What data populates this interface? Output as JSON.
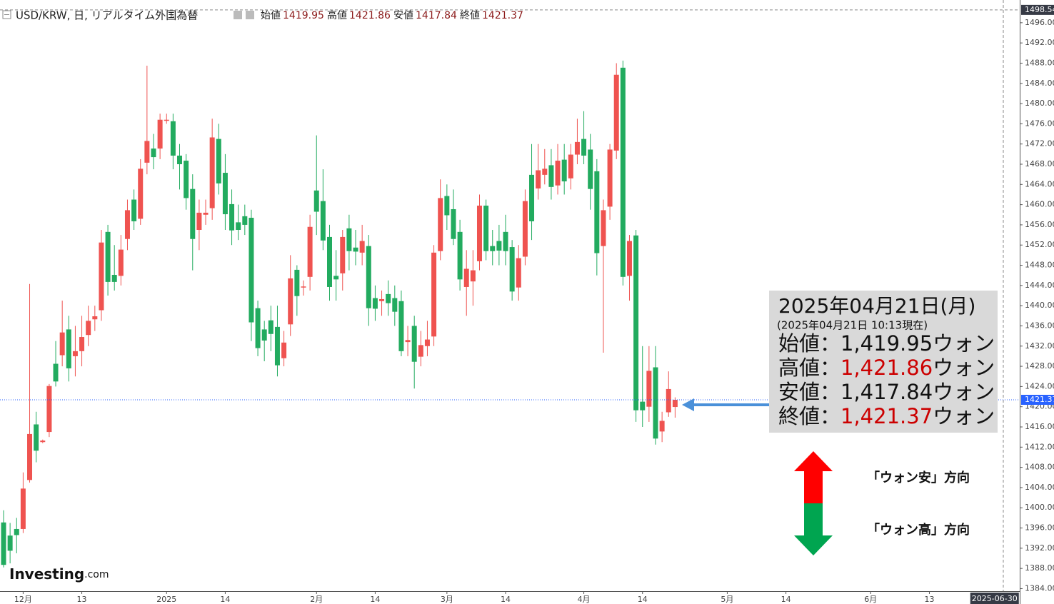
{
  "chart_data": {
    "type": "candlestick",
    "header": {
      "symbol": "USD/KRW, 日, リアルタイム外国為替",
      "ohlc_labels": [
        "始値",
        "高値",
        "安値",
        "終値"
      ]
    },
    "up_color": "#ef5350",
    "down_color": "#22ab5f",
    "last_price_color": "#2962ff",
    "ylim": [
      1383.5,
      1500.5
    ],
    "yticks": [
      {
        "value": 1384,
        "label": "1384.00"
      },
      {
        "value": 1388,
        "label": "1388.00"
      },
      {
        "value": 1392,
        "label": "1392.00"
      },
      {
        "value": 1396,
        "label": "1396.00"
      },
      {
        "value": 1400,
        "label": "1400.00"
      },
      {
        "value": 1404,
        "label": "1404.00"
      },
      {
        "value": 1408,
        "label": "1408.00"
      },
      {
        "value": 1412,
        "label": "1412.00"
      },
      {
        "value": 1416,
        "label": "1416.00"
      },
      {
        "value": 1420,
        "label": "1420.00"
      },
      {
        "value": 1424,
        "label": "1424.00"
      },
      {
        "value": 1428,
        "label": "1428.00"
      },
      {
        "value": 1432,
        "label": "1432.00"
      },
      {
        "value": 1436,
        "label": "1436.00"
      },
      {
        "value": 1440,
        "label": "1440.00"
      },
      {
        "value": 1444,
        "label": "1444.00"
      },
      {
        "value": 1448,
        "label": "1448.00"
      },
      {
        "value": 1452,
        "label": "1452.00"
      },
      {
        "value": 1456,
        "label": "1456.00"
      },
      {
        "value": 1460,
        "label": "1460.00"
      },
      {
        "value": 1464,
        "label": "1464.00"
      },
      {
        "value": 1468,
        "label": "1468.00"
      },
      {
        "value": 1472,
        "label": "1472.00"
      },
      {
        "value": 1476,
        "label": "1476.00"
      },
      {
        "value": 1480,
        "label": "1480.00"
      },
      {
        "value": 1484,
        "label": "1484.00"
      },
      {
        "value": 1488,
        "label": "1488.00"
      },
      {
        "value": 1492,
        "label": "1492.00"
      },
      {
        "value": 1496,
        "label": "1496.00"
      }
    ],
    "crosshair_price": 1498.54,
    "categories": [
      null,
      null,
      null,
      "12月",
      null,
      null,
      null,
      null,
      null,
      null,
      null,
      null,
      "13",
      null,
      null,
      null,
      null,
      null,
      null,
      null,
      null,
      null,
      null,
      null,
      null,
      "2025",
      null,
      null,
      null,
      null,
      null,
      null,
      null,
      null,
      "14",
      null,
      null,
      null,
      null,
      null,
      null,
      null,
      null,
      null,
      null,
      null,
      null,
      null,
      "2月",
      null,
      null,
      null,
      null,
      null,
      null,
      null,
      null,
      "14",
      null,
      null,
      null,
      null,
      null,
      null,
      null,
      null,
      null,
      null,
      "3月",
      null,
      null,
      null,
      null,
      null,
      null,
      null,
      null,
      "14",
      null,
      null,
      null,
      null,
      null,
      null,
      null,
      null,
      null,
      null,
      null,
      "4月",
      null,
      null,
      null,
      null,
      null,
      null,
      null,
      null,
      "14",
      null,
      null,
      null,
      null,
      null,
      null,
      null,
      null,
      null,
      null,
      null,
      null,
      "5月",
      null,
      null,
      null,
      null,
      null,
      null,
      null,
      null,
      "14",
      null,
      null,
      null,
      null,
      null,
      null,
      null,
      null,
      null,
      null,
      null,
      null,
      "6月",
      null,
      null,
      null,
      null,
      null,
      null,
      null,
      null,
      "13",
      null,
      null,
      null,
      null,
      null,
      null,
      null,
      null,
      null,
      "2025-06-30"
    ],
    "open": [
      1397.1,
      1394.5,
      1395.8,
      1395.8,
      1405.5,
      1416.5,
      1413,
      1415,
      1428.5,
      1430.2,
      1435.3,
      1430,
      1431,
      1434.2,
      1437.3,
      1439.1,
      1454.6,
      1446.1,
      1445.9,
      1453.2,
      1461,
      1457.2,
      1468.3,
      1471.1,
      1471.1,
      1476.6,
      1476.5,
      1469.7,
      1468.7,
      1463.1,
      1455,
      1458,
      1459.3,
      1473,
      1466.3,
      1460.1,
      1456.5,
      1457.7,
      1457.4,
      1439.5,
      1435.3,
      1437.1,
      1435.8,
      1429.6,
      1436.3,
      1447.1,
      1443.6,
      1445.7,
      1462.8,
      1460.7,
      1453.6,
      1445.9,
      1446.4,
      1455.3,
      1451.5,
      1450.5,
      1451.8,
      1441.5,
      1440.9,
      1442.3,
      1441.5,
      1440.9,
      1432.8,
      1436,
      1429.9,
      1432,
      1433.9,
      1450.8,
      1461.7,
      1459.1,
      1454.6,
      1443.7,
      1444.8,
      1448.8,
      1459.8,
      1451.8,
      1452.8,
      1454.6,
      1451.6,
      1443.6,
      1449.7,
      1465.9,
      1463.2,
      1465.9,
      1467.8,
      1463.8,
      1468.9,
      1465.2,
      1469.9,
      1473,
      1470.9,
      1466.6,
      1451.8,
      1459.6,
      1470.7,
      1487.1,
      1445.9,
      1453.9,
      1421,
      1420,
      1427.8,
      1415.1,
      1418.9,
      1419.95,
      null,
      null,
      null,
      null,
      null,
      null,
      null,
      null,
      null,
      null,
      null,
      null,
      null,
      null,
      null,
      null,
      null,
      null,
      null,
      null,
      null,
      null,
      null,
      null,
      null,
      null,
      null,
      null,
      null,
      null,
      null,
      null,
      null,
      null,
      null,
      null,
      null,
      null,
      null,
      null,
      null,
      null,
      null,
      null,
      null,
      null,
      null,
      null,
      null
    ],
    "high": [
      1399.5,
      1397,
      1398,
      1407,
      1444.3,
      1419,
      1413.5,
      1424.5,
      1433,
      1441,
      1438,
      1436,
      1438,
      1440,
      1440,
      1455,
      1456,
      1452,
      1454,
      1461,
      1463,
      1469,
      1487.5,
      1474,
      1478,
      1478,
      1478,
      1472,
      1470,
      1466,
      1461,
      1461,
      1477,
      1476,
      1470,
      1463,
      1460,
      1460,
      1459,
      1441,
      1437,
      1440,
      1440,
      1435,
      1450,
      1448,
      1445,
      1458,
      1473.7,
      1467,
      1456,
      1451,
      1455,
      1458,
      1455,
      1456,
      1454,
      1444,
      1443,
      1445,
      1444,
      1443,
      1436,
      1438,
      1435,
      1437,
      1452,
      1465,
      1464,
      1463,
      1457,
      1451,
      1451,
      1462,
      1461,
      1455,
      1456,
      1458,
      1453,
      1452,
      1463,
      1472,
      1472,
      1471,
      1471,
      1472,
      1472,
      1472,
      1477,
      1478.5,
      1474,
      1469,
      1461,
      1472,
      1488,
      1488.5,
      1454,
      1455,
      1432,
      1432,
      1432,
      1419,
      1427,
      1421.86,
      null,
      null,
      null,
      null,
      null,
      null,
      null,
      null,
      null,
      null,
      null,
      null,
      null,
      null,
      null,
      null,
      null,
      null,
      null,
      null,
      null,
      null,
      null,
      null,
      null,
      null,
      null,
      null,
      null,
      null,
      null,
      null,
      null,
      null,
      null,
      null,
      null,
      null,
      null,
      null,
      null,
      null,
      null,
      null,
      null,
      null,
      null,
      null,
      null
    ],
    "low": [
      1388.2,
      1389,
      1391,
      1395,
      1405,
      1409,
      1412.8,
      1414,
      1424,
      1428,
      1425,
      1426,
      1428,
      1432,
      1435,
      1437,
      1442,
      1443,
      1444,
      1451,
      1455,
      1456,
      1466,
      1467,
      1469,
      1476,
      1467,
      1463,
      1459,
      1447,
      1451,
      1456,
      1457,
      1462,
      1455,
      1452,
      1453,
      1454,
      1433,
      1430,
      1429,
      1431,
      1426,
      1428,
      1434,
      1438,
      1442,
      1443,
      1454,
      1451,
      1441,
      1441,
      1443,
      1447,
      1448,
      1448,
      1436,
      1437,
      1438,
      1438,
      1436,
      1430,
      1430,
      1423.6,
      1428,
      1430,
      1432,
      1449,
      1455,
      1452,
      1443,
      1438,
      1440,
      1447,
      1449,
      1448,
      1448,
      1448,
      1441,
      1441,
      1448,
      1453,
      1461,
      1464,
      1461,
      1462,
      1462,
      1463,
      1468,
      1468,
      1459,
      1446,
      1430.7,
      1457,
      1469,
      1444,
      1441,
      1417,
      1416,
      1417,
      1412.5,
      1413,
      1418,
      1417.84,
      null,
      null,
      null,
      null,
      null,
      null,
      null,
      null,
      null,
      null,
      null,
      null,
      null,
      null,
      null,
      null,
      null,
      null,
      null,
      null,
      null,
      null,
      null,
      null,
      null,
      null,
      null,
      null,
      null,
      null,
      null,
      null,
      null,
      null,
      null,
      null,
      null,
      null,
      null,
      null,
      null,
      null,
      null,
      null,
      null,
      null,
      null,
      null,
      null
    ],
    "close": [
      1388.7,
      1391.5,
      1394.6,
      1403.8,
      1414.6,
      1411.3,
      1413.3,
      1424.1,
      1425,
      1434.7,
      1427.6,
      1431,
      1433.8,
      1437,
      1437.9,
      1452.5,
      1444.7,
      1444.7,
      1451.1,
      1458.9,
      1456.7,
      1467.1,
      1472.6,
      1469.4,
      1476.8,
      1476.8,
      1469.7,
      1468,
      1461.3,
      1453.2,
      1458.4,
      1458.4,
      1473.3,
      1464.2,
      1458.1,
      1454.9,
      1455,
      1456,
      1436.7,
      1431.6,
      1433.1,
      1434.4,
      1428.2,
      1432.7,
      1445.4,
      1441.9,
      1443.8,
      1455.6,
      1458.6,
      1452.9,
      1443.7,
      1445.2,
      1453.6,
      1450.8,
      1450.7,
      1452.8,
      1439.5,
      1439.4,
      1441.3,
      1440.5,
      1438.8,
      1431,
      1433.2,
      1428.9,
      1432.2,
      1433.3,
      1450.5,
      1461.3,
      1457.9,
      1453.2,
      1445.2,
      1447.3,
      1447,
      1459.8,
      1450.8,
      1450.8,
      1450.9,
      1450.8,
      1442.8,
      1449.4,
      1460.7,
      1456.7,
      1466.8,
      1467.1,
      1463.5,
      1468.7,
      1464.6,
      1469.9,
      1472.4,
      1469.7,
      1463.1,
      1450.4,
      1458.9,
      1470.9,
      1485.7,
      1445.7,
      1452.8,
      1419.3,
      1419.3,
      1427.1,
      1413.7,
      1417.2,
      1423.5,
      1421.37,
      null,
      null,
      null,
      null,
      null,
      null,
      null,
      null,
      null,
      null,
      null,
      null,
      null,
      null,
      null,
      null,
      null,
      null,
      null,
      null,
      null,
      null,
      null,
      null,
      null,
      null,
      null,
      null,
      null,
      null,
      null,
      null,
      null,
      null,
      null,
      null,
      null,
      null,
      null,
      null,
      null,
      null,
      null,
      null,
      null,
      null,
      null,
      null,
      null
    ],
    "annotation": {
      "date": "2025年04月21日(月)",
      "timestamp": "(2025年04月21日 10:13現在)",
      "rows": [
        {
          "label": "始値：",
          "value": "1,419.95",
          "unit": "ウォン",
          "color": "#111111"
        },
        {
          "label": "高値：",
          "value": "1,421.86",
          "unit": "ウォン",
          "color": "#cc0000"
        },
        {
          "label": "安値：",
          "value": "1,417.84",
          "unit": "ウォン",
          "color": "#111111"
        },
        {
          "label": "終値：",
          "value": "1,421.37",
          "unit": "ウォン",
          "color": "#cc0000"
        }
      ]
    },
    "direction_labels": [
      "「ウォン安」方向",
      "「ウォン高」方向"
    ],
    "branding": {
      "name": "Investing",
      "suffix": ".com"
    }
  }
}
